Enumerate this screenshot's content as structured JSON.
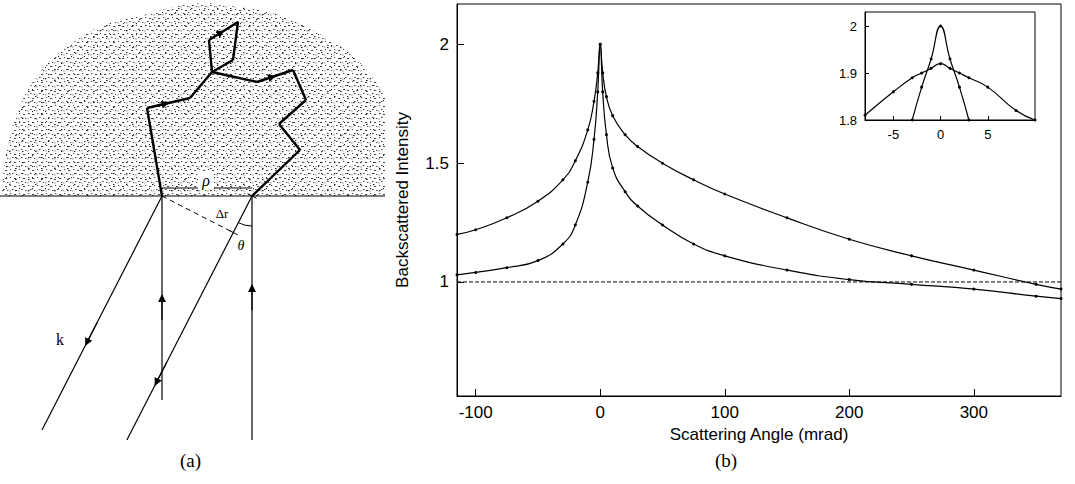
{
  "panel_labels": [
    "(a)",
    "(b)"
  ],
  "diagram": {
    "labels": {
      "rho": "ρ",
      "delta_r": "Δr",
      "theta": "θ",
      "k": "k"
    }
  },
  "chart_data": [
    {
      "type": "line",
      "xlabel": "Scattering Angle (mrad)",
      "ylabel": "Backscattered Intensity",
      "xlim": [
        -115,
        370
      ],
      "xticks": [
        -100,
        0,
        100,
        200,
        300
      ],
      "ylim": [
        0.52,
        2.17
      ],
      "yticks": [
        1,
        1.5,
        2
      ],
      "grid": false,
      "x": [
        -115,
        -100,
        -75,
        -50,
        -30,
        -20,
        -10,
        -5,
        -2,
        0,
        2,
        5,
        10,
        20,
        30,
        50,
        75,
        100,
        150,
        200,
        250,
        300,
        350,
        370
      ],
      "series": [
        {
          "color": "#000000",
          "marker": "circle",
          "line_style": "solid",
          "values": [
            1.2,
            1.22,
            1.27,
            1.34,
            1.43,
            1.51,
            1.64,
            1.76,
            1.88,
            2.0,
            1.88,
            1.78,
            1.7,
            1.62,
            1.57,
            1.5,
            1.43,
            1.37,
            1.27,
            1.18,
            1.11,
            1.05,
            0.99,
            0.97
          ]
        },
        {
          "color": "#000000",
          "marker": "circle",
          "line_style": "solid",
          "values": [
            1.03,
            1.04,
            1.06,
            1.09,
            1.16,
            1.24,
            1.42,
            1.6,
            1.8,
            2.0,
            1.8,
            1.62,
            1.48,
            1.38,
            1.32,
            1.24,
            1.16,
            1.11,
            1.05,
            1.01,
            0.99,
            0.97,
            0.94,
            0.93
          ]
        },
        {
          "color": "#000000",
          "marker": "none",
          "line_style": "dashed",
          "values": [
            1,
            1,
            1,
            1,
            1,
            1,
            1,
            1,
            1,
            1,
            1,
            1,
            1,
            1,
            1,
            1,
            1,
            1,
            1,
            1,
            1,
            1,
            1,
            1
          ]
        }
      ]
    },
    {
      "type": "line",
      "xlim": [
        -8,
        10
      ],
      "xticks": [
        -5,
        0,
        5
      ],
      "ylim": [
        1.8,
        2.03
      ],
      "yticks": [
        1.8,
        1.9,
        2
      ],
      "grid": false,
      "x": [
        -8,
        -5,
        -3,
        -2,
        -1,
        0,
        1,
        2,
        3,
        5,
        8,
        10
      ],
      "series": [
        {
          "color": "#000000",
          "marker": "circle",
          "line_style": "solid",
          "values": [
            null,
            null,
            1.8,
            1.87,
            1.93,
            2.0,
            1.93,
            1.87,
            1.8,
            null,
            null,
            null
          ]
        },
        {
          "color": "#000000",
          "marker": "circle",
          "line_style": "solid",
          "values": [
            1.81,
            1.86,
            1.89,
            1.9,
            1.91,
            1.92,
            1.91,
            1.9,
            1.89,
            1.87,
            1.82,
            1.8
          ]
        }
      ]
    }
  ]
}
